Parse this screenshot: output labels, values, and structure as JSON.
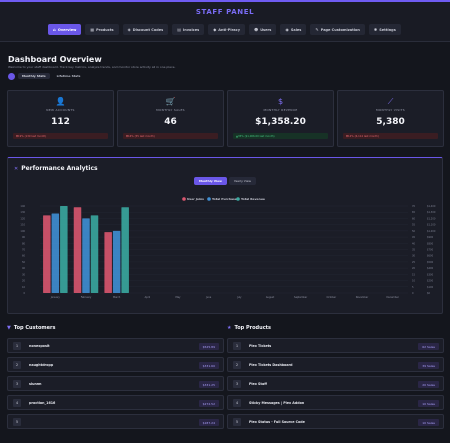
{
  "header": {
    "brand": "STAFF PANEL",
    "nav": [
      {
        "label": "Overview",
        "icon": "dashboard-icon",
        "glyph": "⌂",
        "active": true
      },
      {
        "label": "Products",
        "icon": "box-icon",
        "glyph": "▦",
        "active": false
      },
      {
        "label": "Discount Codes",
        "icon": "tag-icon",
        "glyph": "◈",
        "active": false
      },
      {
        "label": "Invoices",
        "icon": "invoice-icon",
        "glyph": "▤",
        "active": false
      },
      {
        "label": "Anti-Piracy",
        "icon": "shield-icon",
        "glyph": "◆",
        "active": false
      },
      {
        "label": "Users",
        "icon": "users-icon",
        "glyph": "☻",
        "active": false
      },
      {
        "label": "Sales",
        "icon": "sales-icon",
        "glyph": "◉",
        "active": false
      },
      {
        "label": "Page Customization",
        "icon": "brush-icon",
        "glyph": "✎",
        "active": false
      },
      {
        "label": "Settings",
        "icon": "gear-icon",
        "glyph": "✱",
        "active": false
      }
    ]
  },
  "dashboard": {
    "title": "Dashboard Overview",
    "subtitle": "Welcome to your staff dashboard. Track key metrics, analyze trends, and monitor store activity all in one place.",
    "toggle": {
      "active": "Monthly Stats",
      "other": "Lifetime Stats"
    }
  },
  "cards": [
    {
      "label": "NEW ACCOUNTS",
      "value": "112",
      "icon": "user-plus-icon",
      "glyph": "👤",
      "badge": "19% (139 last month)",
      "trend": "down"
    },
    {
      "label": "MONTHLY SALES",
      "value": "46",
      "icon": "cart-icon",
      "glyph": "🛒",
      "badge": "16% (55 last month)",
      "trend": "down"
    },
    {
      "label": "MONTHLY REVENUE",
      "value": "$1,358.20",
      "icon": "dollar-icon",
      "glyph": "$",
      "badge": "35% ($1,006.00 last month)",
      "trend": "up"
    },
    {
      "label": "MONTHLY VISITS",
      "value": "5,380",
      "icon": "chart-line-icon",
      "glyph": "⟋",
      "badge": "12% (6,114 last month)",
      "trend": "down"
    }
  ],
  "performance": {
    "title": "Performance Analytics",
    "views": {
      "active": "Monthly View",
      "other": "Yearly View"
    }
  },
  "chart_data": {
    "type": "bar",
    "categories": [
      "January",
      "February",
      "March",
      "April",
      "May",
      "June",
      "July",
      "August",
      "September",
      "October",
      "November",
      "December"
    ],
    "series": [
      {
        "name": "User Joins",
        "color": "#d9576f",
        "values": [
          125,
          138,
          98,
          0,
          0,
          0,
          0,
          0,
          0,
          0,
          0,
          0
        ]
      },
      {
        "name": "Total Purchases",
        "color": "#3f8fd4",
        "values": [
          128,
          120,
          100,
          0,
          0,
          0,
          0,
          0,
          0,
          0,
          0,
          0
        ]
      },
      {
        "name": "Total Revenue",
        "color": "#3aa9a0",
        "values": [
          1400,
          1250,
          1380,
          0,
          0,
          0,
          0,
          0,
          0,
          0,
          0,
          0
        ]
      }
    ],
    "left_ticks": [
      "140",
      "130",
      "120",
      "110",
      "100",
      "90",
      "80",
      "70",
      "60",
      "50",
      "40",
      "30",
      "20",
      "10",
      "0"
    ],
    "mid_ticks": [
      "70",
      "65",
      "60",
      "55",
      "50",
      "45",
      "40",
      "35",
      "30",
      "25",
      "20",
      "15",
      "10",
      "5",
      "0"
    ],
    "right_ticks": [
      "$1,400",
      "$1,300",
      "$1,200",
      "$1,100",
      "$1,000",
      "$900",
      "$800",
      "$700",
      "$600",
      "$500",
      "$400",
      "$300",
      "$200",
      "$100",
      "$0"
    ],
    "ylim_left": [
      0,
      140
    ],
    "ylim_right": [
      0,
      1400
    ],
    "legend": "top-center",
    "grid": true
  },
  "top_customers": {
    "title": "Top Customers",
    "icon": "trophy-icon",
    "rows": [
      {
        "rank": "1",
        "name": "nonexposit",
        "value": "$525.89"
      },
      {
        "rank": "2",
        "name": "naughtdropp",
        "value": "$331.60"
      },
      {
        "rank": "3",
        "name": "slurzm",
        "value": "$331.25"
      },
      {
        "rank": "4",
        "name": "proction_1616",
        "value": "$272.52"
      },
      {
        "rank": "5",
        "name": "",
        "value": "$187.24"
      }
    ]
  },
  "top_products": {
    "title": "Top Products",
    "icon": "star-icon",
    "rows": [
      {
        "rank": "1",
        "name": "Plex Tickets",
        "value": "62 Sales"
      },
      {
        "rank": "2",
        "name": "Plex Tickets Dashboard",
        "value": "39 Sales"
      },
      {
        "rank": "3",
        "name": "Plex Staff",
        "value": "20 Sales"
      },
      {
        "rank": "4",
        "name": "Sticky Messages | Plex Addon",
        "value": "10 Sales"
      },
      {
        "rank": "5",
        "name": "Plex Status - Full Source Code",
        "value": "10 Sales"
      }
    ]
  },
  "colors": {
    "accent": "#6a57e8",
    "down": "#e2646c",
    "up": "#44c27f"
  }
}
